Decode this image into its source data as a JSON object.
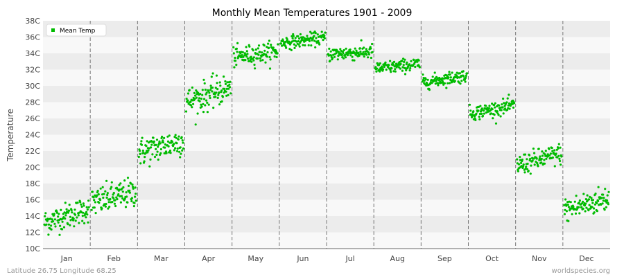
{
  "chart_data": {
    "type": "scatter",
    "title": "Monthly Mean Temperatures 1901 - 2009",
    "ylabel": "Temperature",
    "xlabel": "",
    "categories": [
      "Jan",
      "Feb",
      "Mar",
      "Apr",
      "May",
      "Jun",
      "Jul",
      "Aug",
      "Sep",
      "Oct",
      "Nov",
      "Dec"
    ],
    "y_ticks": [
      "10C",
      "12C",
      "14C",
      "16C",
      "18C",
      "20C",
      "22C",
      "24C",
      "26C",
      "28C",
      "30C",
      "32C",
      "34C",
      "36C",
      "38C"
    ],
    "ylim": [
      10,
      38
    ],
    "year_range": [
      1901,
      2009
    ],
    "grid": "horizontal bands, dashed month separators",
    "legend_position": "top-left",
    "series": [
      {
        "name": "Mean Temp",
        "color": "#00bb00",
        "monthly": [
          {
            "month": "Jan",
            "start": 13.2,
            "end": 14.9,
            "spread": 0.8
          },
          {
            "month": "Feb",
            "start": 15.6,
            "end": 17.0,
            "spread": 0.9
          },
          {
            "month": "Mar",
            "start": 21.8,
            "end": 23.3,
            "spread": 0.9
          },
          {
            "month": "Apr",
            "start": 28.0,
            "end": 29.8,
            "spread": 0.9
          },
          {
            "month": "May",
            "start": 33.5,
            "end": 34.3,
            "spread": 0.6
          },
          {
            "month": "Jun",
            "start": 35.3,
            "end": 35.9,
            "spread": 0.4
          },
          {
            "month": "Jul",
            "start": 33.9,
            "end": 34.2,
            "spread": 0.45
          },
          {
            "month": "Aug",
            "start": 32.1,
            "end": 32.7,
            "spread": 0.4
          },
          {
            "month": "Sep",
            "start": 30.4,
            "end": 31.3,
            "spread": 0.4
          },
          {
            "month": "Oct",
            "start": 26.6,
            "end": 27.6,
            "spread": 0.45
          },
          {
            "month": "Nov",
            "start": 20.2,
            "end": 21.7,
            "spread": 0.65
          },
          {
            "month": "Dec",
            "start": 14.7,
            "end": 16.2,
            "spread": 0.8
          }
        ]
      }
    ]
  },
  "footer": {
    "left": "Latitude 26.75 Longitude 68.25",
    "right": "worldspecies.org"
  }
}
